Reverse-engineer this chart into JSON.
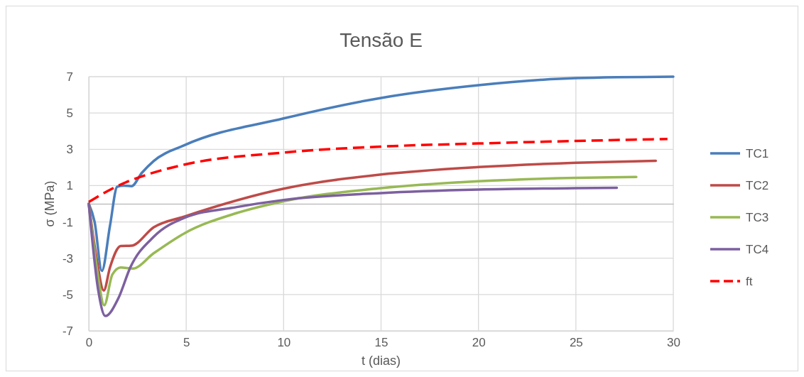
{
  "chart_data": {
    "type": "line",
    "title": "Tensão E",
    "xlabel": "t (dias)",
    "ylabel": "σ (MPa)",
    "xlim": [
      0,
      30
    ],
    "xticks": [
      0,
      5,
      10,
      15,
      20,
      25,
      30
    ],
    "ylim": [
      -7,
      7
    ],
    "yticks": [
      -7,
      -5,
      -3,
      -1,
      1,
      3,
      5,
      7
    ],
    "grid": true,
    "legend": "right",
    "line_style": "solid",
    "marker": "none",
    "series": [
      {
        "name": "TC1",
        "color": "#4a7ebb",
        "x": [
          0,
          0.3,
          0.67,
          1.09,
          1.46,
          1.8,
          2.19,
          2.73,
          3.34,
          4.92,
          10,
          15,
          20,
          25,
          30
        ],
        "values": [
          0,
          -1.0,
          -3.7,
          -1.2,
          0.94,
          1.0,
          0.97,
          1.71,
          2.36,
          3.23,
          4.7,
          5.83,
          6.53,
          6.92,
          7.0
        ]
      },
      {
        "name": "TC2",
        "color": "#be4b48",
        "x": [
          0,
          0.4,
          0.77,
          1.09,
          1.64,
          2.19,
          3.34,
          4.92,
          10,
          15,
          20,
          25,
          29.1
        ],
        "values": [
          0,
          -3.0,
          -4.78,
          -3.5,
          -2.33,
          -2.31,
          -1.29,
          -0.7,
          0.83,
          1.61,
          2.02,
          2.26,
          2.37
        ]
      },
      {
        "name": "TC3",
        "color": "#98b954",
        "x": [
          0,
          0.45,
          0.79,
          1.21,
          1.64,
          2.25,
          3.34,
          4.92,
          7.6,
          10,
          15,
          20,
          25,
          28.1
        ],
        "values": [
          0,
          -3.8,
          -5.59,
          -3.9,
          -3.51,
          -3.57,
          -2.72,
          -1.62,
          -0.51,
          0.14,
          0.86,
          1.24,
          1.43,
          1.48
        ]
      },
      {
        "name": "TC4",
        "color": "#7d60a0",
        "x": [
          0,
          0.49,
          0.85,
          1.52,
          2.13,
          3.34,
          4.92,
          7.6,
          10,
          15,
          20,
          25,
          27.1
        ],
        "values": [
          0,
          -4.8,
          -6.18,
          -5.2,
          -3.51,
          -1.81,
          -0.77,
          -0.18,
          0.21,
          0.59,
          0.78,
          0.86,
          0.88
        ]
      },
      {
        "name": "ft",
        "color": "#ff0000",
        "line_style": "dashed",
        "x": [
          0,
          1.46,
          3.1,
          4.92,
          10,
          15,
          20,
          25,
          29.7
        ],
        "values": [
          0.1,
          0.97,
          1.64,
          2.16,
          2.82,
          3.15,
          3.32,
          3.46,
          3.57
        ]
      }
    ]
  }
}
